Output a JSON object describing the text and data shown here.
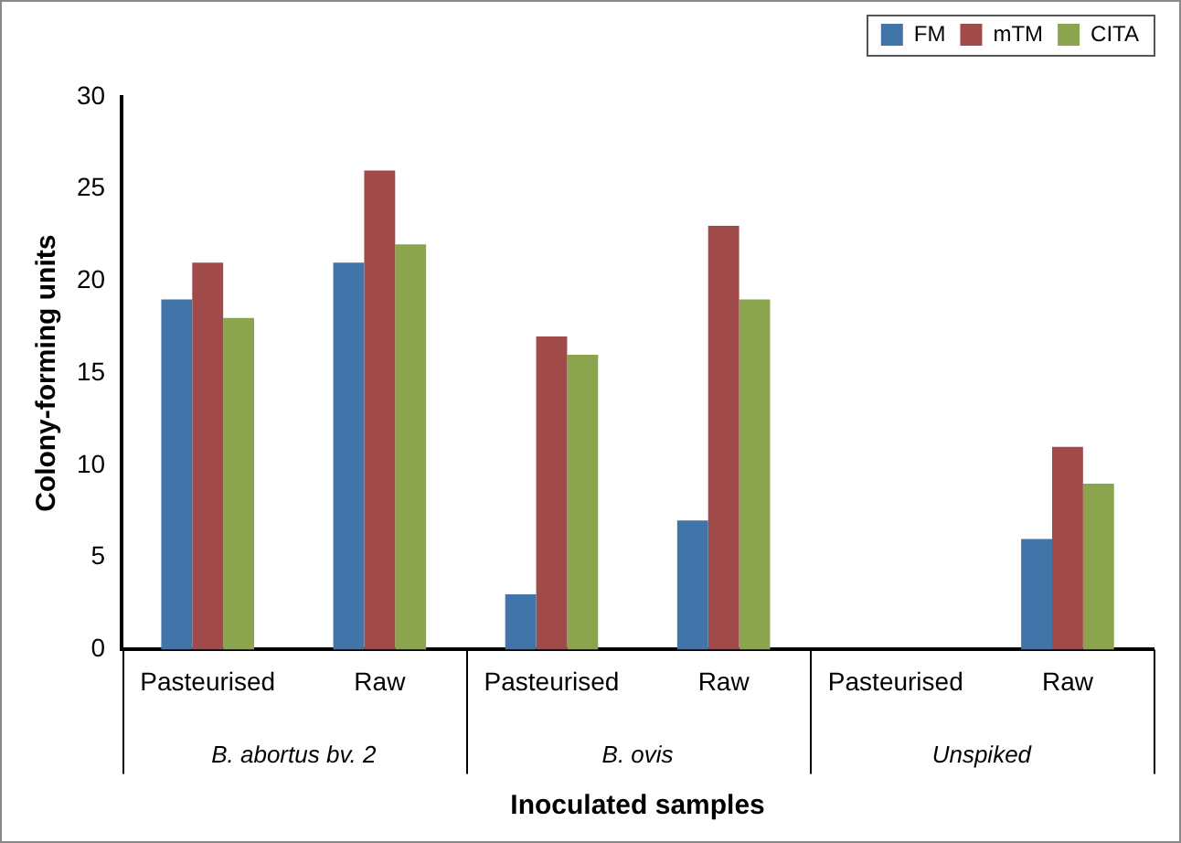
{
  "chart_data": {
    "type": "bar",
    "xlabel": "Inoculated samples",
    "ylabel": "Colony-forming units",
    "categories": [
      "Pasteurised",
      "Raw",
      "Pasteurised",
      "Raw",
      "Pasteurised",
      "Raw"
    ],
    "series": [
      {
        "name": "FM",
        "color": "#4174a8",
        "values": [
          19,
          21,
          3,
          7,
          0,
          6
        ]
      },
      {
        "name": "mTM",
        "color": "#a04b49",
        "values": [
          21,
          26,
          17,
          23,
          0,
          11
        ]
      },
      {
        "name": "CITA",
        "color": "#8ba54e",
        "values": [
          18,
          22,
          16,
          19,
          0,
          9
        ]
      }
    ],
    "annotations": [
      "B. abortus bv. 2",
      "B. ovis",
      "Unspiked"
    ],
    "ylim": [
      0,
      30
    ],
    "yticks": [
      0,
      5,
      10,
      15,
      20,
      25,
      30
    ],
    "grid": false,
    "legend": "top right"
  }
}
